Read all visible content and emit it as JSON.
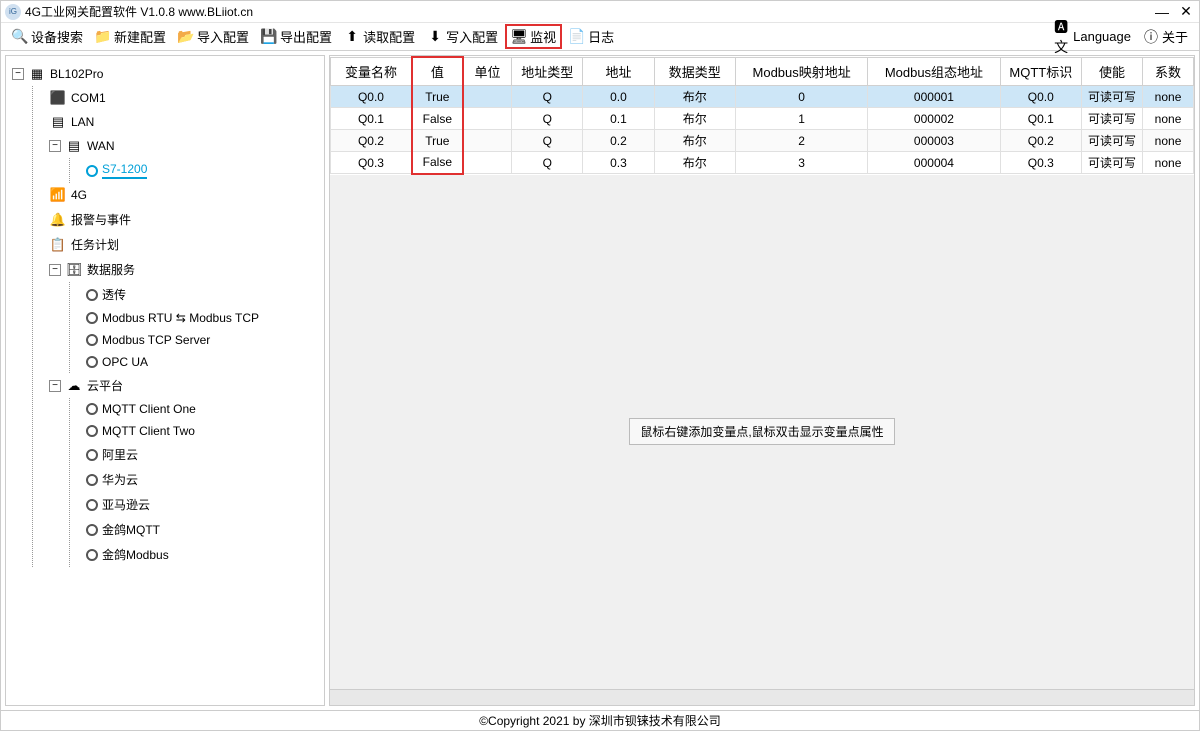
{
  "window": {
    "title": "4G工业网关配置软件 V1.0.8 www.BLiiot.cn"
  },
  "toolbar": {
    "search": "设备搜索",
    "new": "新建配置",
    "import": "导入配置",
    "export": "导出配置",
    "read": "读取配置",
    "write": "写入配置",
    "monitor": "监视",
    "log": "日志",
    "language": "Language",
    "about": "关于"
  },
  "tree": {
    "root": "BL102Pro",
    "com1": "COM1",
    "lan": "LAN",
    "wan": "WAN",
    "s71200": "S7-1200",
    "fourg": "4G",
    "alarm": "报警与事件",
    "task": "任务计划",
    "dataservice": "数据服务",
    "passthrough": "透传",
    "mrtu_mtcp": "Modbus RTU ⇆ Modbus TCP",
    "mtcp_server": "Modbus TCP Server",
    "opcua": "OPC UA",
    "cloud": "云平台",
    "mqtt1": "MQTT Client One",
    "mqtt2": "MQTT Client Two",
    "aliyun": "阿里云",
    "huawei": "华为云",
    "aws": "亚马逊云",
    "kingmqtt": "金鸽MQTT",
    "kingmodbus": "金鸽Modbus"
  },
  "grid": {
    "headers": {
      "name": "变量名称",
      "value": "值",
      "unit": "单位",
      "addrtype": "地址类型",
      "addr": "地址",
      "datatype": "数据类型",
      "modbusmap": "Modbus映射地址",
      "modbusgroup": "Modbus组态地址",
      "mqttid": "MQTT标识",
      "enable": "使能",
      "coef": "系数"
    },
    "rows": [
      {
        "name": "Q0.0",
        "value": "True",
        "unit": "",
        "addrtype": "Q",
        "addr": "0.0",
        "datatype": "布尔",
        "modbusmap": "0",
        "modbusgroup": "000001",
        "mqttid": "Q0.0",
        "enable": "可读可写",
        "coef": "none"
      },
      {
        "name": "Q0.1",
        "value": "False",
        "unit": "",
        "addrtype": "Q",
        "addr": "0.1",
        "datatype": "布尔",
        "modbusmap": "1",
        "modbusgroup": "000002",
        "mqttid": "Q0.1",
        "enable": "可读可写",
        "coef": "none"
      },
      {
        "name": "Q0.2",
        "value": "True",
        "unit": "",
        "addrtype": "Q",
        "addr": "0.2",
        "datatype": "布尔",
        "modbusmap": "2",
        "modbusgroup": "000003",
        "mqttid": "Q0.2",
        "enable": "可读可写",
        "coef": "none"
      },
      {
        "name": "Q0.3",
        "value": "False",
        "unit": "",
        "addrtype": "Q",
        "addr": "0.3",
        "datatype": "布尔",
        "modbusmap": "3",
        "modbusgroup": "000004",
        "mqttid": "Q0.3",
        "enable": "可读可写",
        "coef": "none"
      }
    ]
  },
  "hint": "鼠标右键添加变量点,鼠标双击显示变量点属性",
  "footer": "©Copyright 2021 by 深圳市钡铼技术有限公司"
}
